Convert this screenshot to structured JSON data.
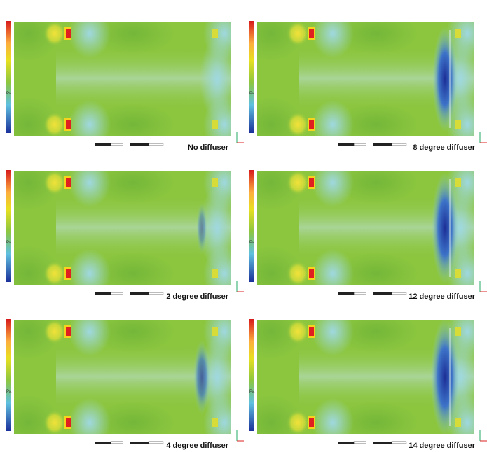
{
  "panels": [
    {
      "caption": "No diffuser",
      "unit": "Pa"
    },
    {
      "caption": "8 degree diffuser",
      "unit": "Pa"
    },
    {
      "caption": "2 degree diffuser",
      "unit": "Pa"
    },
    {
      "caption": "12 degree diffuser",
      "unit": "Pa"
    },
    {
      "caption": "4 degree diffuser",
      "unit": "Pa"
    },
    {
      "caption": "14 degree diffuser",
      "unit": "Pa"
    }
  ]
}
